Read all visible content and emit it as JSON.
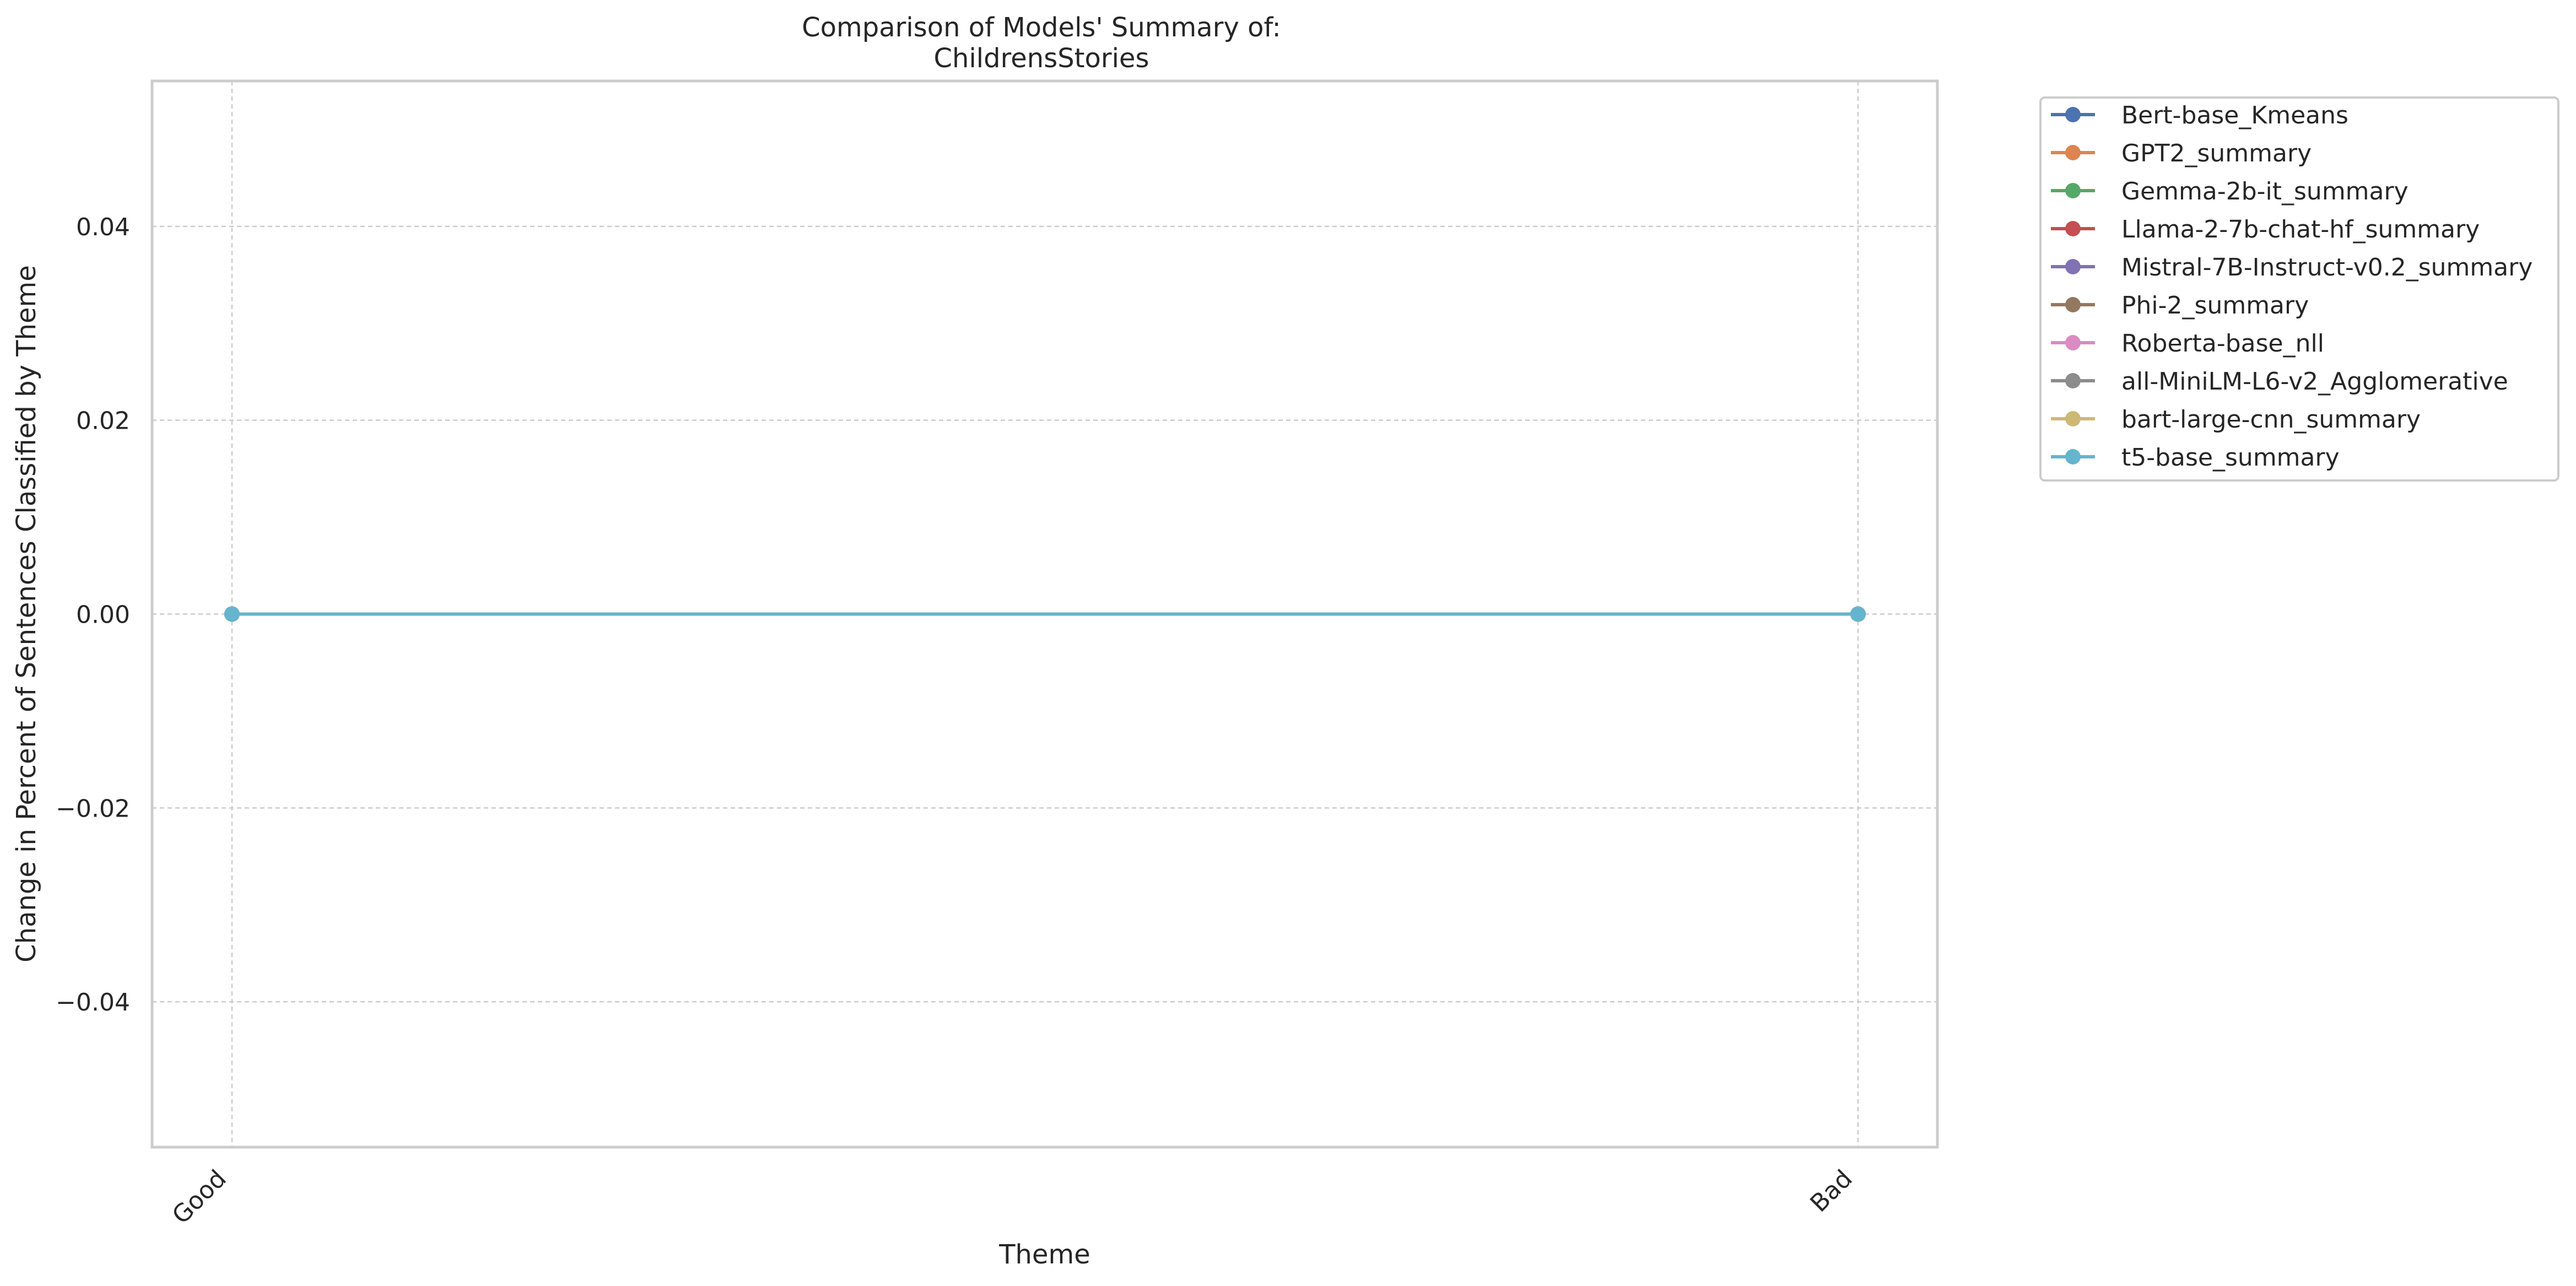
{
  "chart_data": {
    "type": "line",
    "title_lines": [
      "Comparison of Models' Summary of:",
      "ChildrensStories"
    ],
    "xlabel": "Theme",
    "ylabel": "Change in Percent of Sentences Classified by Theme",
    "categories": [
      "Good",
      "Bad"
    ],
    "ylim": [
      -0.055,
      0.055
    ],
    "yticks": [
      -0.04,
      -0.02,
      0.0,
      0.02,
      0.04
    ],
    "ytick_labels": [
      "−0.04",
      "−0.02",
      "0.00",
      "0.02",
      "0.04"
    ],
    "grid": true,
    "legend_position": "outside-top-right",
    "series": [
      {
        "name": "Bert-base_Kmeans",
        "color": "#4c72b0",
        "values": [
          0,
          0
        ]
      },
      {
        "name": "GPT2_summary",
        "color": "#dd8452",
        "values": [
          0,
          0
        ]
      },
      {
        "name": "Gemma-2b-it_summary",
        "color": "#55a868",
        "values": [
          0,
          0
        ]
      },
      {
        "name": "Llama-2-7b-chat-hf_summary",
        "color": "#c44e52",
        "values": [
          0,
          0
        ]
      },
      {
        "name": "Mistral-7B-Instruct-v0.2_summary",
        "color": "#8172b3",
        "values": [
          0,
          0
        ]
      },
      {
        "name": "Phi-2_summary",
        "color": "#937860",
        "values": [
          0,
          0
        ]
      },
      {
        "name": "Roberta-base_nll",
        "color": "#da8bc3",
        "values": [
          0,
          0
        ]
      },
      {
        "name": "all-MiniLM-L6-v2_Agglomerative",
        "color": "#8c8c8c",
        "values": [
          0,
          0
        ]
      },
      {
        "name": "bart-large-cnn_summary",
        "color": "#ccb974",
        "values": [
          0,
          0
        ]
      },
      {
        "name": "t5-base_summary",
        "color": "#64b5cd",
        "values": [
          0,
          0
        ]
      }
    ]
  }
}
